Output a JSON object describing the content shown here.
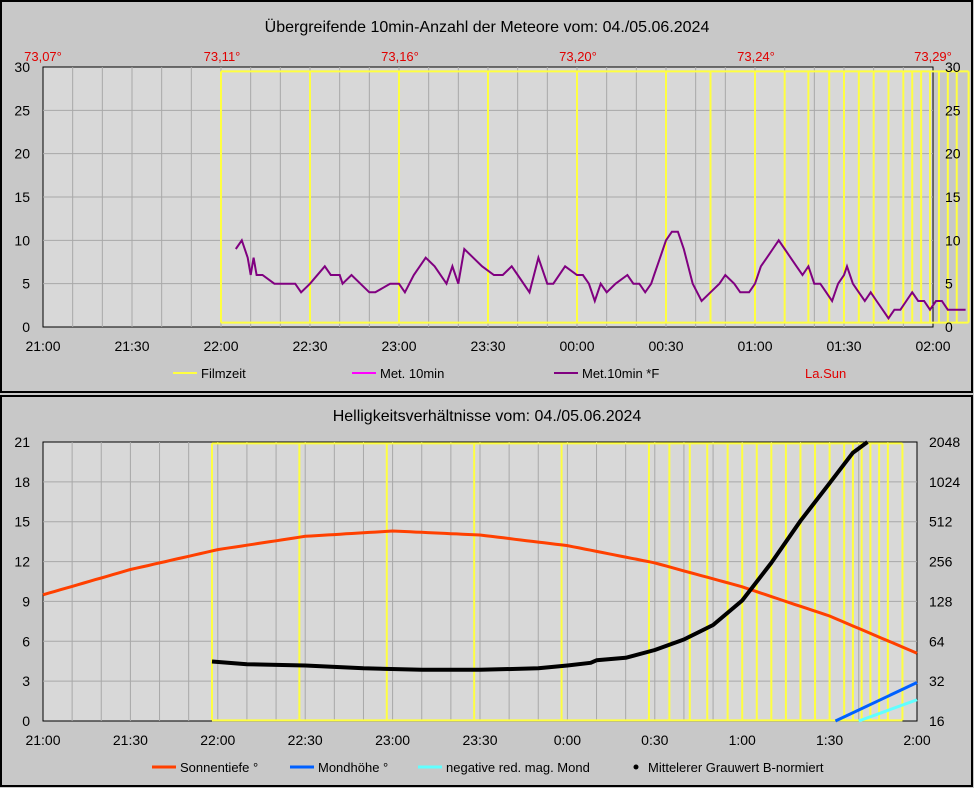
{
  "chart_data": [
    {
      "type": "line",
      "title": "Übergreifende 10min-Anzahl der Meteore vom: 04./05.06.2024",
      "x_ticks": [
        "21:00",
        "21:30",
        "22:00",
        "22:30",
        "23:00",
        "23:30",
        "00:00",
        "00:30",
        "01:00",
        "01:30",
        "02:00"
      ],
      "y_ticks_left": [
        "0",
        "5",
        "10",
        "15",
        "20",
        "25",
        "30"
      ],
      "y_ticks_right": [
        "0",
        "5",
        "10",
        "15",
        "20",
        "25",
        "30"
      ],
      "top_ticks": [
        "73,07°",
        "73,11°",
        "73,16°",
        "73,20°",
        "73,24°",
        "73,29°"
      ],
      "ylim": [
        0,
        30
      ],
      "grid": true,
      "legend": [
        "Filmzeit",
        "Met. 10min",
        "Met.10min *F",
        "La.Sun"
      ],
      "colors": {
        "filmzeit": "#ffff40",
        "met10": "#ff00ff",
        "met10f": "#800080",
        "lasun": "#e00000"
      },
      "filmzeit_start_min": [
        60,
        90,
        120,
        150,
        180,
        210,
        225,
        240,
        250,
        258,
        265,
        270,
        275,
        280,
        285,
        290,
        293,
        296,
        299,
        302,
        305,
        308
      ],
      "filmzeit_end_min": 312,
      "series": [
        {
          "name": "Met.10min *F",
          "x_min": [
            65,
            67,
            69,
            70,
            71,
            72,
            74,
            78,
            80,
            85,
            87,
            90,
            95,
            97,
            100,
            101,
            104,
            107,
            110,
            112,
            117,
            120,
            122,
            125,
            127,
            129,
            132,
            136,
            138,
            140,
            142,
            145,
            148,
            152,
            155,
            158,
            160,
            164,
            167,
            170,
            172,
            176,
            180,
            182,
            184,
            186,
            188,
            190,
            193,
            197,
            199,
            201,
            203,
            205,
            206,
            208,
            210,
            212,
            214,
            216,
            219,
            222,
            225,
            228,
            230,
            233,
            235,
            238,
            240,
            242,
            244,
            246,
            248,
            250,
            252,
            254,
            256,
            258,
            260,
            262,
            264,
            266,
            268,
            270,
            271,
            273,
            275,
            277,
            279,
            281,
            283,
            285,
            287,
            289,
            291,
            293,
            295,
            297,
            299,
            301,
            303,
            305,
            307,
            309,
            311
          ],
          "values": [
            9,
            10,
            8,
            6,
            8,
            6,
            6,
            5,
            5,
            5,
            4,
            5,
            7,
            6,
            6,
            5,
            6,
            5,
            4,
            4,
            5,
            5,
            4,
            6,
            7,
            8,
            7,
            5,
            7,
            5,
            9,
            8,
            7,
            6,
            6,
            7,
            6,
            4,
            8,
            5,
            5,
            7,
            6,
            6,
            5,
            3,
            5,
            4,
            5,
            6,
            5,
            5,
            4,
            5,
            6,
            8,
            10,
            11,
            11,
            9,
            5,
            3,
            4,
            5,
            6,
            5,
            4,
            4,
            5,
            7,
            8,
            9,
            10,
            9,
            8,
            7,
            6,
            7,
            5,
            5,
            4,
            3,
            5,
            6,
            7,
            5,
            4,
            3,
            4,
            3,
            2,
            1,
            2,
            2,
            3,
            4,
            3,
            3,
            2,
            3,
            3,
            2,
            2,
            2,
            2
          ]
        }
      ]
    },
    {
      "type": "line",
      "title": "Helligkeitsverhältnisse vom: 04./05.06.2024",
      "x_ticks": [
        "21:00",
        "21:30",
        "22:00",
        "22:30",
        "23:00",
        "23:30",
        "0:00",
        "0:30",
        "1:00",
        "1:30",
        "2:00"
      ],
      "y_ticks_left": [
        "0",
        "3",
        "6",
        "9",
        "12",
        "15",
        "18",
        "21"
      ],
      "y_ticks_right": [
        "16",
        "32",
        "64",
        "128",
        "256",
        "512",
        "1024",
        "2048"
      ],
      "ylim": [
        0,
        21
      ],
      "y2lim": [
        16,
        2048
      ],
      "y2_scale": "log2",
      "grid": true,
      "legend": [
        "Sonnentiefe °",
        "Mondhöhe °",
        "negative red. mag. Mond",
        "Mittelerer Grauwert B-normiert"
      ],
      "colors": {
        "sonne": "#ff4000",
        "mond": "#0060ff",
        "negmag": "#60ffff",
        "grau": "#000000",
        "filmzeit": "#ffff40"
      },
      "filmzeit_start_min": [
        58,
        88,
        118,
        148,
        178,
        208,
        215,
        222,
        228,
        235,
        240,
        245,
        250,
        255,
        260,
        265,
        270,
        275,
        278,
        281,
        284,
        287,
        290
      ],
      "filmzeit_end_min": 295,
      "series": [
        {
          "name": "Sonnentiefe °",
          "x_min": [
            0,
            30,
            60,
            90,
            120,
            150,
            180,
            210,
            240,
            270,
            300
          ],
          "values": [
            9.5,
            11.4,
            12.9,
            13.9,
            14.3,
            14.0,
            13.2,
            11.9,
            10.1,
            7.9,
            5.1
          ]
        },
        {
          "name": "Mondhöhe °",
          "x_min": [
            272,
            300
          ],
          "values": [
            0,
            2.9
          ]
        },
        {
          "name": "negative red. mag. Mond",
          "x_min": [
            280,
            300
          ],
          "values": [
            0,
            1.6
          ]
        },
        {
          "name": "Mittelerer Grauwert B-normiert",
          "x_min": [
            58,
            70,
            90,
            110,
            130,
            150,
            170,
            180,
            188,
            190,
            200,
            210,
            220,
            230,
            240,
            250,
            260,
            270,
            278,
            283
          ],
          "values": [
            45,
            43,
            42,
            40,
            39,
            39,
            40,
            42,
            44,
            46,
            48,
            55,
            66,
            85,
            130,
            250,
            520,
            1000,
            1700,
            2048
          ]
        }
      ]
    }
  ]
}
